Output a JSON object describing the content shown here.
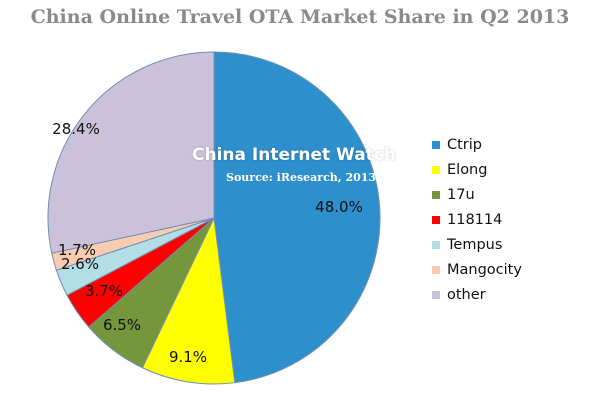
{
  "chart_data": {
    "type": "pie",
    "title": "China Online Travel OTA Market Share in Q2 2013",
    "watermark": "China Internet Watch",
    "source": "Source: iResearch, 2013",
    "legend_position": "right",
    "slices": [
      {
        "name": "Ctrip",
        "value": 48.0,
        "label": "48.0%",
        "color": "#2e8fcd"
      },
      {
        "name": "Elong",
        "value": 9.1,
        "label": "9.1%",
        "color": "#ffff00"
      },
      {
        "name": "17u",
        "value": 6.5,
        "label": "6.5%",
        "color": "#76963c"
      },
      {
        "name": "118114",
        "value": 3.7,
        "label": "3.7%",
        "color": "#ff0000"
      },
      {
        "name": "Tempus",
        "value": 2.6,
        "label": "2.6%",
        "color": "#b3dde7"
      },
      {
        "name": "Mangocity",
        "value": 1.7,
        "label": "1.7%",
        "color": "#f9cbb0"
      },
      {
        "name": "other",
        "value": 28.4,
        "label": "28.4%",
        "color": "#ccc1da"
      }
    ]
  }
}
